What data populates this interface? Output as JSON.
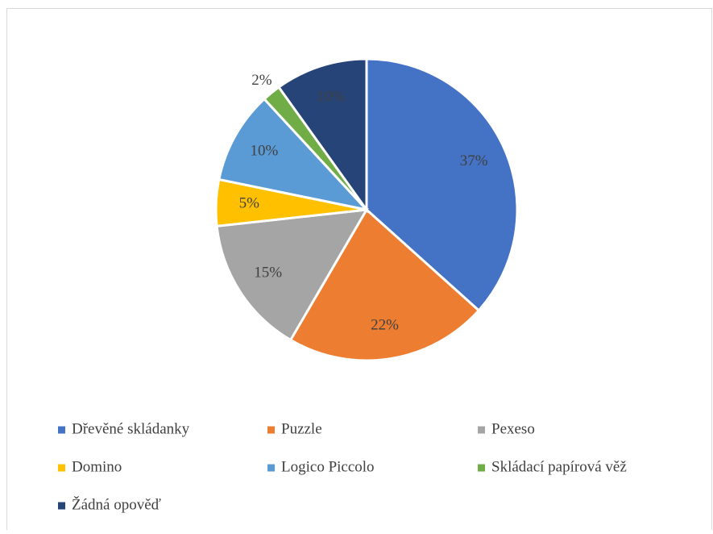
{
  "chart_data": {
    "type": "pie",
    "categories": [
      "Dřevěné skládanky",
      "Puzzle",
      "Pexeso",
      "Domino",
      "Logico Piccolo",
      "Skládací papírová věž",
      "Žádná opověď"
    ],
    "values": [
      37,
      22,
      15,
      5,
      10,
      2,
      10
    ],
    "value_labels": [
      "37%",
      "22%",
      "15%",
      "5%",
      "10%",
      "2%",
      "10%"
    ],
    "colors": [
      "#4472c4",
      "#ed7d31",
      "#a5a5a5",
      "#ffc000",
      "#5b9bd5",
      "#70ad47",
      "#264478"
    ],
    "legend": "bottom"
  }
}
